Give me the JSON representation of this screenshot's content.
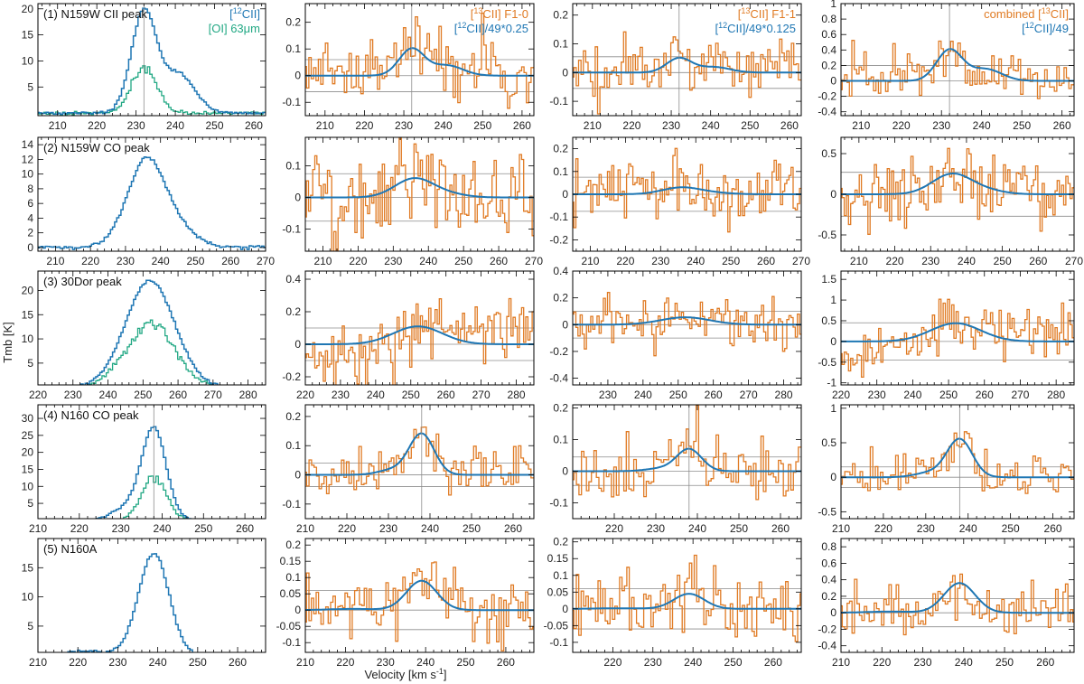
{
  "figure": {
    "ylabel": "Tmb [K]",
    "xlabel_main": "Velocity [km s",
    "xlabel_sup": "-1",
    "xlabel_close": "]"
  },
  "colors": {
    "c12": "#1f77b4",
    "oi": "#22a884",
    "c13": "#e07b24",
    "fit": "#1f77b4",
    "ref": "#8c8c8c"
  },
  "legends": {
    "col0": [
      {
        "pre": "[",
        "sup": "12",
        "post": "CII]",
        "color": "#1f77b4"
      },
      {
        "pre": "[OI] 63",
        "sup": "",
        "post": "μm",
        "color": "#22a884"
      }
    ],
    "col1": [
      {
        "pre": "[",
        "sup": "13",
        "post": "CII] F1-0",
        "color": "#e07b24"
      },
      {
        "pre": "[",
        "sup": "12",
        "post": "CII]/49*0.25",
        "color": "#1f77b4"
      }
    ],
    "col2": [
      {
        "pre": "[",
        "sup": "13",
        "post": "CII] F1-1",
        "color": "#e07b24"
      },
      {
        "pre": "[",
        "sup": "12",
        "post": "CII]/49*0.125",
        "color": "#1f77b4"
      }
    ],
    "col3": [
      {
        "pre": "combined [",
        "sup": "13",
        "post": "CII]",
        "color": "#e07b24"
      },
      {
        "pre": "[",
        "sup": "12",
        "post": "CII]/49",
        "color": "#1f77b4"
      }
    ]
  },
  "chart_data": {
    "type": "line",
    "title": "",
    "rows": [
      {
        "title": "(1) N159W CII peak",
        "xlim": [
          205,
          263
        ],
        "xticks": [
          210,
          220,
          230,
          240,
          250,
          260
        ],
        "xticks_col2": [
          210,
          220,
          230,
          240,
          250,
          260
        ],
        "vline": 232,
        "has_oi": true,
        "peak": 19.5,
        "oi_peak": 8.5,
        "comps": [
          [
            232,
            3.2,
            1.0
          ],
          [
            241,
            4.0,
            0.38
          ]
        ],
        "ylims": [
          [
            -0.5,
            21
          ],
          [
            -0.15,
            0.27
          ],
          [
            -0.15,
            0.24
          ],
          [
            -0.45,
            1.0
          ]
        ],
        "yticks": [
          [
            5,
            10,
            15,
            20
          ],
          [
            -0.1,
            0.0,
            0.1,
            0.2
          ],
          [
            -0.1,
            0.0,
            0.1,
            0.2
          ],
          [
            -0.4,
            -0.2,
            0.0,
            0.2,
            0.4,
            0.6,
            0.8,
            1.0
          ]
        ],
        "fit_peaks": [
          0.1,
          0.05,
          0.4
        ],
        "noise": [
          0.06,
          0.055,
          0.15
        ],
        "refs": [
          0.06,
          0.055,
          0.2
        ],
        "drift": [
          0,
          0,
          0
        ]
      },
      {
        "title": "(2) N159W CO peak",
        "xlim": [
          205,
          270
        ],
        "xticks": [
          210,
          220,
          230,
          240,
          250,
          260,
          270
        ],
        "xticks_col2": [
          210,
          220,
          230,
          240,
          250,
          260,
          270
        ],
        "vline": null,
        "has_oi": false,
        "peak": 12,
        "oi_peak": 0,
        "comps": [
          [
            236,
            5.5,
            1.0
          ],
          [
            246,
            5.0,
            0.15
          ]
        ],
        "ylims": [
          [
            -0.5,
            15
          ],
          [
            -0.17,
            0.19
          ],
          [
            -0.25,
            0.25
          ],
          [
            -0.7,
            0.7
          ]
        ],
        "yticks": [
          [
            0,
            2,
            4,
            6,
            8,
            10,
            12,
            14
          ],
          [
            -0.1,
            0.0,
            0.1
          ],
          [
            -0.2,
            -0.1,
            0.0,
            0.1,
            0.2
          ],
          [
            -0.5,
            0.0,
            0.5
          ]
        ],
        "fit_peaks": [
          0.06,
          0.03,
          0.25
        ],
        "noise": [
          0.07,
          0.08,
          0.22
        ],
        "refs": [
          0.075,
          0.075,
          0.27
        ],
        "drift": [
          0,
          0,
          0
        ]
      },
      {
        "title": "(3) 30Dor peak",
        "xlim": [
          220,
          285
        ],
        "xticks": [
          220,
          230,
          240,
          250,
          260,
          270,
          280
        ],
        "xticks_col2": [
          230,
          240,
          250,
          260,
          270,
          280
        ],
        "vline": null,
        "has_oi": true,
        "peak": 22,
        "oi_peak": 13,
        "comps": [
          [
            252,
            7.0,
            1.0
          ]
        ],
        "ylims": [
          [
            0.5,
            24
          ],
          [
            -0.25,
            0.45
          ],
          [
            -0.45,
            0.4
          ],
          [
            -1.05,
            1.7
          ]
        ],
        "yticks": [
          [
            5,
            10,
            15,
            20
          ],
          [
            -0.2,
            0.0,
            0.2,
            0.4
          ],
          [
            -0.4,
            -0.2,
            0.0,
            0.2,
            0.4
          ],
          [
            -1.0,
            -0.5,
            0.0,
            0.5,
            1.0,
            1.5
          ]
        ],
        "fit_peaks": [
          0.11,
          0.055,
          0.44
        ],
        "noise": [
          0.09,
          0.1,
          0.3
        ],
        "refs": [
          0.1,
          0.1,
          0.45
        ],
        "drift": [
          0.004,
          0.0,
          0.012
        ]
      },
      {
        "title": "(4) N160 CO peak",
        "xlim": [
          210,
          265
        ],
        "xticks": [
          210,
          220,
          230,
          240,
          250,
          260
        ],
        "xticks_col2": [
          220,
          230,
          240,
          250,
          260
        ],
        "vline": 238,
        "has_oi": true,
        "peak": 27,
        "oi_peak": 13,
        "comps": [
          [
            238,
            3.0,
            1.0
          ],
          [
            231,
            3.5,
            0.12
          ]
        ],
        "ylims": [
          [
            0.5,
            34
          ],
          [
            -0.15,
            0.24
          ],
          [
            -0.15,
            0.21
          ],
          [
            -0.6,
            1.05
          ]
        ],
        "yticks": [
          [
            5,
            10,
            15,
            20,
            25,
            30
          ],
          [
            -0.1,
            0.0,
            0.1,
            0.2
          ],
          [
            -0.1,
            0.0,
            0.1,
            0.2
          ],
          [
            -0.5,
            0.0,
            0.5,
            1.0
          ]
        ],
        "fit_peaks": [
          0.14,
          0.07,
          0.55
        ],
        "noise": [
          0.045,
          0.05,
          0.15
        ],
        "refs": [
          0.04,
          0.045,
          0.15
        ],
        "drift": [
          0,
          0,
          0
        ]
      },
      {
        "title": "(5) N160A",
        "xlim": [
          210,
          267
        ],
        "xticks": [
          210,
          220,
          230,
          240,
          250,
          260
        ],
        "xticks_col2": [
          220,
          230,
          240,
          250,
          260
        ],
        "vline": null,
        "has_oi": false,
        "peak": 17.5,
        "oi_peak": 0,
        "comps": [
          [
            239,
            3.8,
            1.0
          ],
          [
            222,
            6.0,
            0.04
          ]
        ],
        "ylims": [
          [
            0.5,
            20
          ],
          [
            -0.13,
            0.22
          ],
          [
            -0.13,
            0.21
          ],
          [
            -0.48,
            0.9
          ]
        ],
        "yticks": [
          [
            5,
            10,
            15
          ],
          [
            -0.1,
            -0.05,
            0.0,
            0.05,
            0.1,
            0.15,
            0.2
          ],
          [
            -0.1,
            -0.05,
            0.0,
            0.05,
            0.1,
            0.15,
            0.2
          ],
          [
            -0.4,
            -0.2,
            0.0,
            0.2,
            0.4,
            0.6,
            0.8
          ]
        ],
        "fit_peaks": [
          0.09,
          0.045,
          0.36
        ],
        "noise": [
          0.05,
          0.05,
          0.16
        ],
        "refs": [
          0.06,
          0.06,
          0.17
        ],
        "drift": [
          0,
          0,
          0
        ]
      }
    ]
  }
}
